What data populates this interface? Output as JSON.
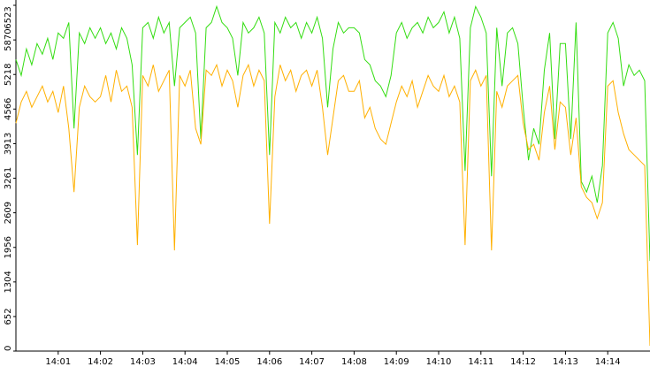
{
  "chart_data": {
    "type": "line",
    "x": [
      0,
      0.125,
      0.25,
      0.375,
      0.5,
      0.625,
      0.75,
      0.875,
      1,
      1.125,
      1.25,
      1.375,
      1.5,
      1.625,
      1.75,
      1.875,
      2,
      2.125,
      2.25,
      2.375,
      2.5,
      2.625,
      2.75,
      2.875,
      3,
      3.125,
      3.25,
      3.375,
      3.5,
      3.625,
      3.75,
      3.875,
      4,
      4.125,
      4.25,
      4.375,
      4.5,
      4.625,
      4.75,
      4.875,
      5,
      5.125,
      5.25,
      5.375,
      5.5,
      5.625,
      5.75,
      5.875,
      6,
      6.125,
      6.25,
      6.375,
      6.5,
      6.625,
      6.75,
      6.875,
      7,
      7.125,
      7.25,
      7.375,
      7.5,
      7.625,
      7.75,
      7.875,
      8,
      8.125,
      8.25,
      8.375,
      8.5,
      8.625,
      8.75,
      8.875,
      9,
      9.125,
      9.25,
      9.375,
      9.5,
      9.625,
      9.75,
      9.875,
      10,
      10.125,
      10.25,
      10.375,
      10.5,
      10.625,
      10.75,
      10.875,
      11,
      11.125,
      11.25,
      11.375,
      11.5,
      11.625,
      11.75,
      11.875,
      12,
      12.125,
      12.25,
      12.375,
      12.5,
      12.625,
      12.75,
      12.875,
      13,
      13.125,
      13.25,
      13.375,
      13.5,
      13.625,
      13.75,
      13.875,
      14,
      14.125,
      14.25,
      14.375,
      14.5,
      14.625,
      14.75,
      14.875,
      15
    ],
    "series": [
      {
        "color": "#33dd11",
        "values": [
          5500,
          5200,
          5700,
          5400,
          5800,
          5600,
          5900,
          5500,
          6000,
          5900,
          6200,
          4200,
          6000,
          5800,
          6100,
          5900,
          6100,
          5800,
          6000,
          5700,
          6100,
          5900,
          5400,
          3700,
          6100,
          6200,
          5900,
          6300,
          6000,
          6200,
          5000,
          6100,
          6200,
          6300,
          6000,
          4000,
          6100,
          6200,
          6500,
          6200,
          6100,
          5900,
          5200,
          6200,
          6000,
          6100,
          6300,
          6000,
          3700,
          6200,
          6000,
          6300,
          6100,
          6200,
          5900,
          6200,
          6000,
          6300,
          5900,
          4600,
          5700,
          6200,
          6000,
          6100,
          6100,
          6000,
          5500,
          5400,
          5100,
          5000,
          4800,
          5200,
          6000,
          6200,
          5900,
          6100,
          6200,
          6000,
          6300,
          6100,
          6200,
          6400,
          6000,
          6300,
          5900,
          3400,
          6100,
          6500,
          6300,
          6000,
          3300,
          6100,
          5000,
          6000,
          6100,
          5800,
          4600,
          3600,
          4200,
          3900,
          5300,
          6000,
          4000,
          5800,
          5800,
          4000,
          6200,
          3200,
          3000,
          3300,
          2800,
          3500,
          6000,
          6200,
          5900,
          5000,
          5400,
          5200,
          5300,
          5100,
          1700
        ]
      },
      {
        "color": "#ffb000",
        "values": [
          4300,
          4700,
          4900,
          4600,
          4800,
          5000,
          4700,
          4900,
          4500,
          5000,
          4200,
          3000,
          4600,
          5000,
          4800,
          4700,
          4800,
          5200,
          4700,
          5300,
          4900,
          5000,
          4600,
          2000,
          5200,
          5000,
          5400,
          4900,
          5100,
          5300,
          1900,
          5200,
          5000,
          5300,
          4200,
          3900,
          5300,
          5200,
          5400,
          5000,
          5300,
          5100,
          4600,
          5200,
          5400,
          5000,
          5300,
          5100,
          2400,
          4800,
          5400,
          5100,
          5300,
          4900,
          5200,
          5300,
          5000,
          5300,
          4600,
          3700,
          4400,
          5100,
          5200,
          4900,
          4900,
          5100,
          4400,
          4600,
          4200,
          4000,
          3900,
          4300,
          4700,
          5000,
          4800,
          5100,
          4600,
          4900,
          5200,
          5000,
          4900,
          5200,
          4800,
          5000,
          4700,
          2000,
          5100,
          5300,
          5000,
          5200,
          1900,
          4900,
          4600,
          5000,
          5100,
          5200,
          4300,
          3800,
          3900,
          3600,
          4500,
          5000,
          3800,
          4700,
          4600,
          3700,
          4400,
          3100,
          2900,
          2800,
          2500,
          2800,
          5000,
          5100,
          4500,
          4100,
          3800,
          3700,
          3600,
          3500,
          100
        ]
      }
    ],
    "xlim": [
      0,
      15
    ],
    "xticks": [
      {
        "value": 1,
        "label": "14:01"
      },
      {
        "value": 2,
        "label": "14:02"
      },
      {
        "value": 3,
        "label": "14:03"
      },
      {
        "value": 4,
        "label": "14:04"
      },
      {
        "value": 5,
        "label": "14:05"
      },
      {
        "value": 6,
        "label": "14:06"
      },
      {
        "value": 7,
        "label": "14:07"
      },
      {
        "value": 8,
        "label": "14:08"
      },
      {
        "value": 9,
        "label": "14:09"
      },
      {
        "value": 10,
        "label": "14:10"
      },
      {
        "value": 11,
        "label": "14:11"
      },
      {
        "value": 12,
        "label": "14:12"
      },
      {
        "value": 13,
        "label": "14:13"
      },
      {
        "value": 14,
        "label": "14:14"
      }
    ],
    "ylim": [
      0,
      6523
    ],
    "yticks": [
      0,
      652,
      1304,
      1956,
      2609,
      3261,
      3913,
      4566,
      5218,
      5870,
      6523
    ],
    "grid": false
  }
}
